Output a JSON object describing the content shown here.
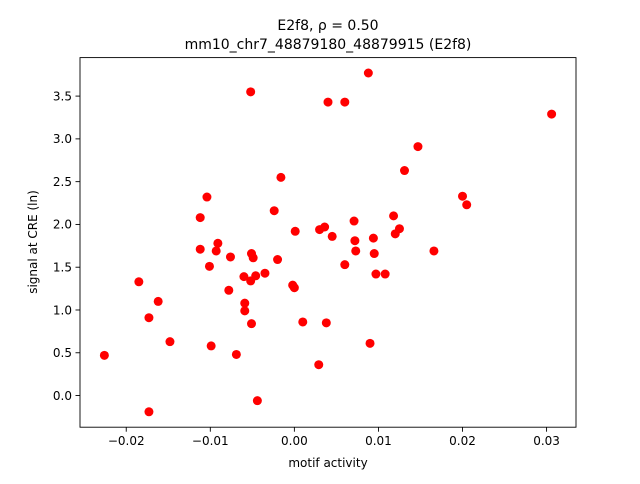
{
  "chart_data": {
    "type": "scatter",
    "title_line1": "E2f8, ρ = 0.50",
    "title_line2": "mm10_chr7_48879180_48879915 (E2f8)",
    "xlabel": "motif activity",
    "ylabel": "signal at CRE (ln)",
    "xlim": [
      -0.0255,
      0.0335
    ],
    "ylim": [
      -0.37,
      3.95
    ],
    "xticks": [
      -0.02,
      -0.01,
      0.0,
      0.01,
      0.02,
      0.03
    ],
    "xtick_labels": [
      "−0.02",
      "−0.01",
      "0.00",
      "0.01",
      "0.02",
      "0.03"
    ],
    "yticks": [
      0.0,
      0.5,
      1.0,
      1.5,
      2.0,
      2.5,
      3.0,
      3.5
    ],
    "ytick_labels": [
      "0.0",
      "0.5",
      "1.0",
      "1.5",
      "2.0",
      "2.5",
      "3.0",
      "3.5"
    ],
    "grid": false,
    "marker_color": "#ff0000",
    "points": [
      {
        "x": -0.0226,
        "y": 0.47
      },
      {
        "x": -0.0185,
        "y": 1.33
      },
      {
        "x": -0.0173,
        "y": 0.91
      },
      {
        "x": -0.0173,
        "y": -0.19
      },
      {
        "x": -0.0162,
        "y": 1.1
      },
      {
        "x": -0.0148,
        "y": 0.63
      },
      {
        "x": -0.0112,
        "y": 2.08
      },
      {
        "x": -0.0112,
        "y": 1.71
      },
      {
        "x": -0.0104,
        "y": 2.32
      },
      {
        "x": -0.0101,
        "y": 1.51
      },
      {
        "x": -0.0099,
        "y": 0.58
      },
      {
        "x": -0.0093,
        "y": 1.69
      },
      {
        "x": -0.0091,
        "y": 1.78
      },
      {
        "x": -0.0078,
        "y": 1.23
      },
      {
        "x": -0.0076,
        "y": 1.62
      },
      {
        "x": -0.0069,
        "y": 0.48
      },
      {
        "x": -0.006,
        "y": 1.39
      },
      {
        "x": -0.0059,
        "y": 1.08
      },
      {
        "x": -0.0059,
        "y": 0.99
      },
      {
        "x": -0.0052,
        "y": 3.55
      },
      {
        "x": -0.0052,
        "y": 1.34
      },
      {
        "x": -0.0051,
        "y": 1.66
      },
      {
        "x": -0.0051,
        "y": 0.84
      },
      {
        "x": -0.0049,
        "y": 1.61
      },
      {
        "x": -0.0046,
        "y": 1.4
      },
      {
        "x": -0.0044,
        "y": -0.06
      },
      {
        "x": -0.0035,
        "y": 1.43
      },
      {
        "x": -0.0024,
        "y": 2.16
      },
      {
        "x": -0.002,
        "y": 1.59
      },
      {
        "x": -0.0016,
        "y": 2.55
      },
      {
        "x": -0.0002,
        "y": 1.29
      },
      {
        "x": 0.0,
        "y": 1.26
      },
      {
        "x": 0.0001,
        "y": 1.92
      },
      {
        "x": 0.001,
        "y": 0.86
      },
      {
        "x": 0.0029,
        "y": 0.36
      },
      {
        "x": 0.003,
        "y": 1.94
      },
      {
        "x": 0.0036,
        "y": 1.97
      },
      {
        "x": 0.0038,
        "y": 0.85
      },
      {
        "x": 0.004,
        "y": 3.43
      },
      {
        "x": 0.0045,
        "y": 1.86
      },
      {
        "x": 0.006,
        "y": 3.43
      },
      {
        "x": 0.006,
        "y": 1.53
      },
      {
        "x": 0.0071,
        "y": 2.04
      },
      {
        "x": 0.0072,
        "y": 1.81
      },
      {
        "x": 0.0073,
        "y": 1.69
      },
      {
        "x": 0.0088,
        "y": 3.77
      },
      {
        "x": 0.009,
        "y": 0.61
      },
      {
        "x": 0.0094,
        "y": 1.84
      },
      {
        "x": 0.0095,
        "y": 1.66
      },
      {
        "x": 0.0097,
        "y": 1.42
      },
      {
        "x": 0.0108,
        "y": 1.42
      },
      {
        "x": 0.0118,
        "y": 2.1
      },
      {
        "x": 0.012,
        "y": 1.89
      },
      {
        "x": 0.0125,
        "y": 1.95
      },
      {
        "x": 0.0131,
        "y": 2.63
      },
      {
        "x": 0.0147,
        "y": 2.91
      },
      {
        "x": 0.0166,
        "y": 1.69
      },
      {
        "x": 0.02,
        "y": 2.33
      },
      {
        "x": 0.0205,
        "y": 2.23
      },
      {
        "x": 0.0306,
        "y": 3.29
      }
    ]
  }
}
